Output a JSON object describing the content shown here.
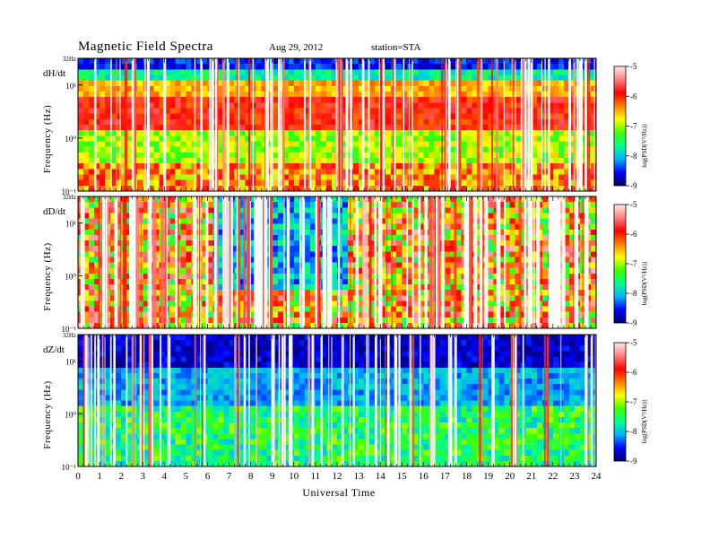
{
  "header": {
    "title": "Magnetic  Field  Spectra",
    "date": "Aug 29, 2012",
    "station": "station=STA"
  },
  "chart_data": [
    {
      "type": "heatmap",
      "component": "dH/dt",
      "ylabel": "Frequency (Hz)",
      "ytick_labels": [
        "32Hz",
        "10¹",
        "10⁰",
        "10⁻¹"
      ],
      "yscale": "log",
      "ylim": [
        0.1,
        32
      ],
      "xlim": [
        0,
        24
      ],
      "colorbar": {
        "label": "log(PSD(V²/Hz))",
        "range": [
          -9,
          -5
        ],
        "ticks": [
          "-5",
          "-6",
          "-7",
          "-8",
          "-9"
        ]
      }
    },
    {
      "type": "heatmap",
      "component": "dD/dt",
      "ylabel": "Frequency (Hz)",
      "ytick_labels": [
        "32Hz",
        "10¹",
        "10⁰",
        "10⁻¹"
      ],
      "yscale": "log",
      "ylim": [
        0.1,
        32
      ],
      "xlim": [
        0,
        24
      ],
      "colorbar": {
        "label": "log(PSD(V²/Hz))",
        "range": [
          -9,
          -5
        ],
        "ticks": [
          "-5",
          "-6",
          "-7",
          "-8",
          "-9"
        ]
      }
    },
    {
      "type": "heatmap",
      "component": "dZ/dt",
      "ylabel": "Frequency (Hz)",
      "ytick_labels": [
        "32Hz",
        "10¹",
        "10⁰",
        "10⁻¹"
      ],
      "yscale": "log",
      "ylim": [
        0.1,
        32
      ],
      "xlim": [
        0,
        24
      ],
      "xlabel": "Universal Time",
      "xtick_labels": [
        "0",
        "1",
        "2",
        "3",
        "4",
        "5",
        "6",
        "7",
        "8",
        "9",
        "10",
        "11",
        "12",
        "13",
        "14",
        "15",
        "16",
        "17",
        "18",
        "19",
        "20",
        "21",
        "22",
        "23",
        "24"
      ],
      "colorbar": {
        "label": "log(PSD(V²/Hz))",
        "range": [
          -9,
          -5
        ],
        "ticks": [
          "-5",
          "-6",
          "-7",
          "-8",
          "-9"
        ]
      }
    }
  ],
  "colors": {
    "scale": [
      "#000060",
      "#0000ff",
      "#00b0ff",
      "#00ff90",
      "#40ff00",
      "#ffff00",
      "#ff8000",
      "#ff0000",
      "#ff8080",
      "#ffe8e8"
    ]
  }
}
